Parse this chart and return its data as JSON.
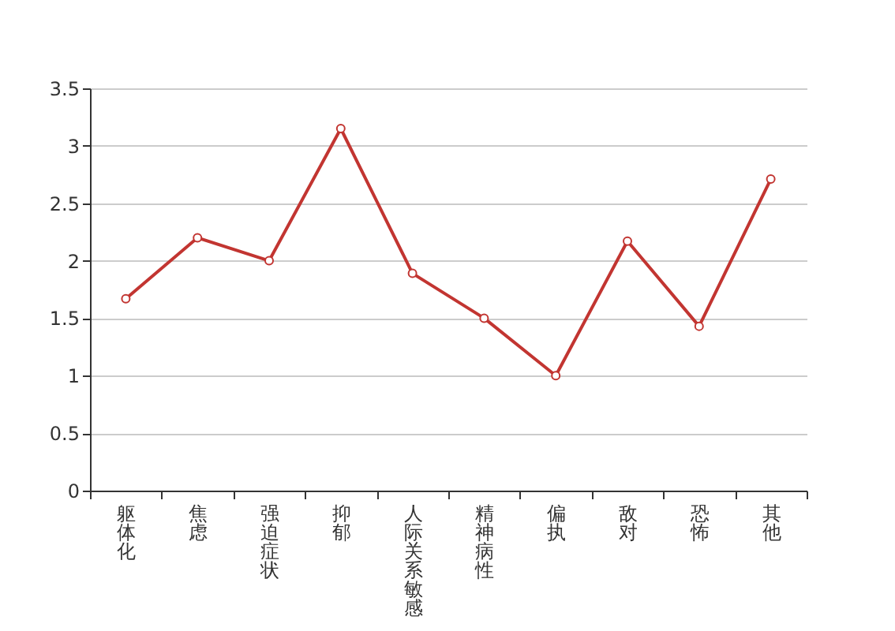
{
  "chart_data": {
    "type": "line",
    "categories": [
      "躯体化",
      "焦虑",
      "强迫症状",
      "抑郁",
      "人际关系敏感",
      "精神病性",
      "偏执",
      "敌对",
      "恐怖",
      "其他"
    ],
    "series": [
      {
        "color": "#c23531",
        "values": [
          1.67,
          2.2,
          2.0,
          3.15,
          1.89,
          1.5,
          1.0,
          2.17,
          1.43,
          2.71
        ]
      }
    ],
    "ylim": [
      0,
      3.5
    ],
    "yticks": [
      0,
      0.5,
      1,
      1.5,
      2,
      2.5,
      3,
      3.5
    ],
    "grid": "y",
    "marker": "circle",
    "line_style": "solid"
  }
}
